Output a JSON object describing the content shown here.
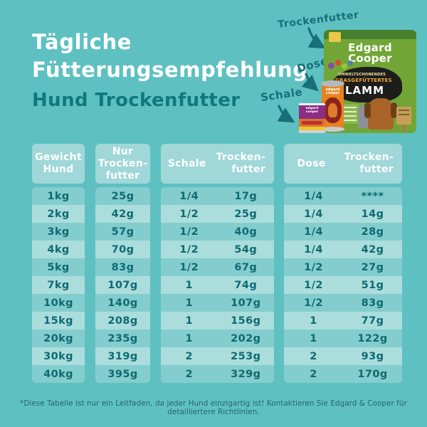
{
  "title": {
    "line1": "Tägliche",
    "line2": "Fütterungsempfehlung",
    "subtitle": "Hund Trockenfutter"
  },
  "products": {
    "callouts": [
      {
        "label": "Trockenfutter"
      },
      {
        "label": "Dose"
      },
      {
        "label": "Schale"
      }
    ],
    "bag": {
      "brand_line1": "Edgard",
      "brand_line2": "Cooper",
      "claim": "UMWELTSCHONENDES",
      "variant": "GRASGEFÜTTERTES",
      "flavor": "LAMM"
    },
    "can": {
      "brand_line1": "edgard",
      "brand_line2": "cooper"
    },
    "tray": {
      "brand_line1": "edgard",
      "brand_line2": "cooper"
    }
  },
  "table": {
    "headers": {
      "weight": "Gewicht\nHund",
      "dry_only": "Nur\nTrocken-\nfutter",
      "tray": "Schale",
      "tray_dry": "Trocken-\nfutter",
      "can": "Dose",
      "can_dry": "Trocken-\nfutter"
    },
    "rows": [
      {
        "weight": "1kg",
        "dry_only": "25g",
        "tray": "1/4",
        "tray_dry": "17g",
        "can": "1/4",
        "can_dry": "****"
      },
      {
        "weight": "2kg",
        "dry_only": "42g",
        "tray": "1/2",
        "tray_dry": "25g",
        "can": "1/4",
        "can_dry": "14g"
      },
      {
        "weight": "3kg",
        "dry_only": "57g",
        "tray": "1/2",
        "tray_dry": "40g",
        "can": "1/4",
        "can_dry": "28g"
      },
      {
        "weight": "4kg",
        "dry_only": "70g",
        "tray": "1/2",
        "tray_dry": "54g",
        "can": "1/4",
        "can_dry": "42g"
      },
      {
        "weight": "5kg",
        "dry_only": "83g",
        "tray": "1/2",
        "tray_dry": "67g",
        "can": "1/2",
        "can_dry": "27g"
      },
      {
        "weight": "7kg",
        "dry_only": "107g",
        "tray": "1",
        "tray_dry": "74g",
        "can": "1/2",
        "can_dry": "51g"
      },
      {
        "weight": "10kg",
        "dry_only": "140g",
        "tray": "1",
        "tray_dry": "107g",
        "can": "1/2",
        "can_dry": "83g"
      },
      {
        "weight": "15kg",
        "dry_only": "208g",
        "tray": "1",
        "tray_dry": "156g",
        "can": "1",
        "can_dry": "77g"
      },
      {
        "weight": "20kg",
        "dry_only": "235g",
        "tray": "1",
        "tray_dry": "202g",
        "can": "1",
        "can_dry": "122g"
      },
      {
        "weight": "30kg",
        "dry_only": "319g",
        "tray": "2",
        "tray_dry": "253g",
        "can": "2",
        "can_dry": "93g"
      },
      {
        "weight": "40kg",
        "dry_only": "395g",
        "tray": "2",
        "tray_dry": "329g",
        "can": "2",
        "can_dry": "170g"
      }
    ]
  },
  "footnote": {
    "text": "*Diese Tabelle ist nur ein Leitfaden, da jeder Hund einzigartig ist! Kontaktieren Sie Edgard & Cooper für detailliertere Richtlinien."
  },
  "colors": {
    "bg": "#5ec0c1",
    "title": "#ffffff",
    "subtitle": "#11787c",
    "accent": "#176f78",
    "header_cell": "#a0d7d8",
    "row_odd": "#84cdce",
    "row_even": "#abdddd",
    "table_text": "#0e6a71",
    "bag_green": "#71a637",
    "can_orange": "#e8821f",
    "tray_purple": "#8c2d84"
  }
}
